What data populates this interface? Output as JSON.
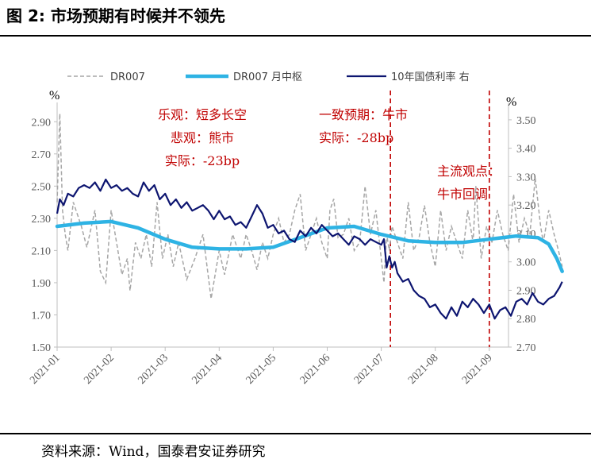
{
  "figure": {
    "title": "图 2:  市场预期有时候并不领先",
    "source": "资料来源：Wind，国泰君安证券研究"
  },
  "chart_data": {
    "type": "line",
    "title": "图 2:  市场预期有时候并不领先",
    "left_unit": "%",
    "right_unit": "%",
    "left_ylim": [
      1.5,
      3.0
    ],
    "left_ticks": [
      "2.90",
      "2.70",
      "2.50",
      "2.30",
      "2.10",
      "1.90",
      "1.70",
      "1.50"
    ],
    "right_ylim": [
      2.7,
      3.55
    ],
    "right_ticks": [
      "3.50",
      "3.40",
      "3.30",
      "3.20",
      "3.10",
      "3.00",
      "2.90",
      "2.80",
      "2.70"
    ],
    "x_ticks": [
      "2021-01",
      "2021-02",
      "2021-03",
      "2021-04",
      "2021-05",
      "2021-06",
      "2021-07",
      "2021-08",
      "2021-09"
    ],
    "legend": [
      "DR007",
      "DR007 月中枢",
      "10年国债利率 右"
    ],
    "legend_position": "top",
    "colors": {
      "dr007": "#a6a6a6",
      "center": "#2eb3e4",
      "bond": "#0d1570",
      "annotation": "#c00000"
    },
    "series": [
      {
        "name": "DR007",
        "axis": "left",
        "style": "dashed",
        "x": [
          0,
          0.05,
          0.1,
          0.15,
          0.2,
          0.3,
          0.45,
          0.55,
          0.7,
          0.8,
          0.9,
          1.0,
          1.1,
          1.2,
          1.3,
          1.35,
          1.45,
          1.55,
          1.65,
          1.75,
          1.85,
          1.95,
          2.05,
          2.15,
          2.25,
          2.4,
          2.55,
          2.7,
          2.85,
          3.0,
          3.1,
          3.25,
          3.4,
          3.5,
          3.6,
          3.7,
          3.8,
          3.9,
          4.0,
          4.1,
          4.2,
          4.3,
          4.4,
          4.5,
          4.6,
          4.7,
          4.8,
          4.9,
          5.0,
          5.05,
          5.12,
          5.2,
          5.3,
          5.4,
          5.5,
          5.6,
          5.7,
          5.8,
          5.9,
          6.0,
          6.05,
          6.1,
          6.15,
          6.2,
          6.3,
          6.4,
          6.5,
          6.6,
          6.7,
          6.8,
          6.9,
          7.0,
          7.1,
          7.2,
          7.3,
          7.4,
          7.5,
          7.6,
          7.7,
          7.75,
          7.85,
          7.95,
          8.05,
          8.15,
          8.25,
          8.35,
          8.45,
          8.55,
          8.65,
          8.75,
          8.85,
          8.95,
          9.0,
          9.1,
          9.2,
          9.28,
          9.35
        ],
        "values": [
          2.4,
          2.95,
          2.35,
          2.2,
          2.1,
          2.4,
          2.25,
          2.12,
          2.35,
          1.97,
          1.9,
          2.35,
          2.15,
          1.95,
          2.05,
          1.85,
          2.15,
          2.05,
          2.2,
          2.0,
          2.4,
          2.05,
          2.2,
          2.0,
          2.15,
          1.92,
          2.05,
          2.2,
          1.8,
          2.1,
          1.95,
          2.2,
          2.05,
          2.2,
          2.1,
          1.98,
          2.15,
          2.05,
          2.2,
          2.3,
          2.15,
          2.2,
          2.35,
          2.45,
          2.1,
          2.2,
          2.3,
          2.15,
          2.05,
          2.35,
          2.42,
          2.18,
          2.2,
          2.3,
          2.1,
          2.15,
          2.5,
          2.2,
          2.35,
          2.05,
          1.9,
          2.2,
          2.1,
          2.25,
          2.15,
          2.05,
          2.4,
          2.1,
          2.18,
          2.38,
          2.15,
          2.0,
          2.35,
          2.1,
          2.25,
          2.15,
          2.05,
          2.35,
          2.15,
          2.5,
          2.05,
          2.25,
          2.15,
          2.35,
          2.2,
          2.1,
          2.45,
          2.15,
          2.3,
          2.2,
          2.55,
          2.25,
          2.15,
          2.35,
          2.2,
          2.1,
          2.0
        ]
      },
      {
        "name": "DR007 月中枢",
        "axis": "left",
        "style": "solid-thick",
        "x": [
          0,
          0.5,
          1.0,
          1.5,
          2.0,
          2.5,
          3.0,
          3.5,
          4.0,
          4.5,
          5.0,
          5.5,
          6.0,
          6.5,
          7.0,
          7.5,
          8.0,
          8.5,
          8.9,
          9.1,
          9.25,
          9.35
        ],
        "values": [
          2.25,
          2.27,
          2.28,
          2.24,
          2.17,
          2.12,
          2.11,
          2.11,
          2.12,
          2.18,
          2.24,
          2.25,
          2.2,
          2.16,
          2.15,
          2.15,
          2.17,
          2.19,
          2.18,
          2.14,
          2.05,
          1.97
        ]
      },
      {
        "name": "10年国债利率 右",
        "axis": "right",
        "x": [
          0,
          0.05,
          0.12,
          0.2,
          0.3,
          0.4,
          0.5,
          0.6,
          0.7,
          0.8,
          0.9,
          1.0,
          1.1,
          1.2,
          1.3,
          1.4,
          1.5,
          1.6,
          1.7,
          1.8,
          1.9,
          2.0,
          2.1,
          2.2,
          2.3,
          2.4,
          2.5,
          2.6,
          2.7,
          2.8,
          2.9,
          3.0,
          3.1,
          3.2,
          3.3,
          3.4,
          3.5,
          3.6,
          3.7,
          3.8,
          3.9,
          4.0,
          4.1,
          4.2,
          4.3,
          4.4,
          4.5,
          4.6,
          4.7,
          4.8,
          4.9,
          5.0,
          5.1,
          5.2,
          5.3,
          5.4,
          5.5,
          5.6,
          5.7,
          5.8,
          5.9,
          6.0,
          6.05,
          6.1,
          6.15,
          6.2,
          6.25,
          6.3,
          6.4,
          6.5,
          6.6,
          6.7,
          6.8,
          6.9,
          7.0,
          7.1,
          7.2,
          7.3,
          7.4,
          7.5,
          7.6,
          7.7,
          7.8,
          7.9,
          8.0,
          8.1,
          8.2,
          8.3,
          8.4,
          8.5,
          8.6,
          8.7,
          8.8,
          8.9,
          9.0,
          9.1,
          9.2,
          9.3,
          9.35
        ],
        "values": [
          3.17,
          3.22,
          3.2,
          3.24,
          3.23,
          3.26,
          3.27,
          3.26,
          3.28,
          3.25,
          3.29,
          3.26,
          3.27,
          3.25,
          3.26,
          3.24,
          3.23,
          3.28,
          3.25,
          3.27,
          3.22,
          3.24,
          3.2,
          3.22,
          3.19,
          3.21,
          3.18,
          3.19,
          3.2,
          3.18,
          3.15,
          3.18,
          3.15,
          3.16,
          3.13,
          3.14,
          3.12,
          3.16,
          3.2,
          3.17,
          3.12,
          3.13,
          3.1,
          3.11,
          3.08,
          3.07,
          3.11,
          3.09,
          3.12,
          3.1,
          3.13,
          3.11,
          3.09,
          3.1,
          3.08,
          3.06,
          3.09,
          3.08,
          3.06,
          3.08,
          3.07,
          3.06,
          3.08,
          2.98,
          3.02,
          2.98,
          3.0,
          2.96,
          2.93,
          2.94,
          2.9,
          2.88,
          2.87,
          2.84,
          2.85,
          2.82,
          2.8,
          2.84,
          2.81,
          2.86,
          2.84,
          2.87,
          2.85,
          2.82,
          2.85,
          2.8,
          2.83,
          2.84,
          2.81,
          2.86,
          2.87,
          2.85,
          2.89,
          2.86,
          2.85,
          2.87,
          2.88,
          2.91,
          2.93
        ]
      }
    ],
    "vlines_x": [
      6.17,
      8.0
    ],
    "annotations": [
      {
        "lines": [
          "乐观：短多长空",
          "悲观：熊市",
          "实际：-23bp"
        ],
        "align": "middle"
      },
      {
        "lines": [
          "一致预期：牛市",
          "实际：-28bp"
        ],
        "align": "start"
      },
      {
        "lines": [
          "主流观点：",
          "牛市回调"
        ],
        "align": "start"
      }
    ]
  }
}
